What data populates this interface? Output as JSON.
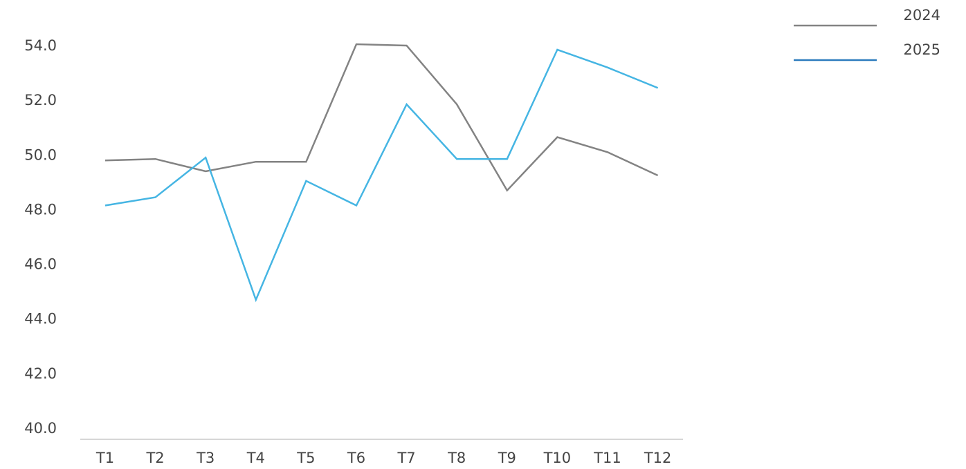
{
  "chart_data": {
    "type": "line",
    "title": "",
    "xlabel": "",
    "ylabel": "",
    "categories": [
      "T1",
      "T2",
      "T3",
      "T4",
      "T5",
      "T6",
      "T7",
      "T8",
      "T9",
      "T10",
      "T11",
      "T12"
    ],
    "y_ticks": [
      "40.0",
      "42.0",
      "44.0",
      "46.0",
      "48.0",
      "50.0",
      "52.0",
      "54.0"
    ],
    "ylim": [
      40,
      54.5
    ],
    "grid": false,
    "legend_position": "top-right",
    "series": [
      {
        "name": "2024",
        "color": "#838383",
        "legend_color": "#838383",
        "values": [
          49.8,
          49.85,
          49.4,
          49.75,
          49.75,
          54.05,
          54.0,
          51.85,
          48.7,
          50.65,
          50.1,
          49.25
        ]
      },
      {
        "name": "2025",
        "color": "#45b5e3",
        "legend_color": "#2b7bbd",
        "values": [
          48.15,
          48.45,
          49.9,
          44.7,
          49.05,
          48.15,
          51.85,
          49.85,
          49.85,
          53.85,
          53.2,
          52.45
        ]
      }
    ]
  }
}
